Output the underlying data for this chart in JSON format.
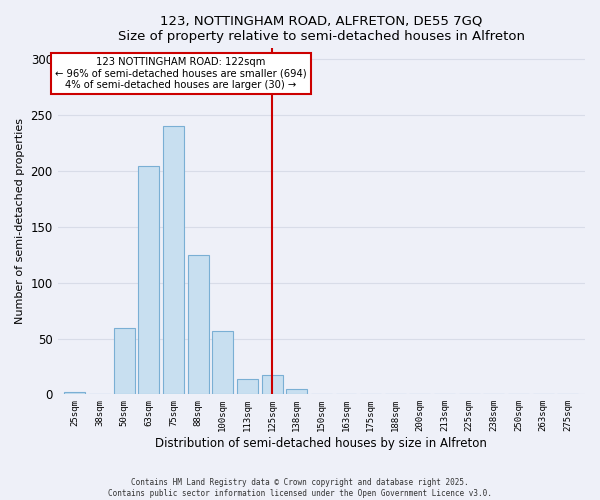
{
  "title": "123, NOTTINGHAM ROAD, ALFRETON, DE55 7GQ",
  "subtitle": "Size of property relative to semi-detached houses in Alfreton",
  "xlabel": "Distribution of semi-detached houses by size in Alfreton",
  "ylabel": "Number of semi-detached properties",
  "bar_labels": [
    "25sqm",
    "38sqm",
    "50sqm",
    "63sqm",
    "75sqm",
    "88sqm",
    "100sqm",
    "113sqm",
    "125sqm",
    "138sqm",
    "150sqm",
    "163sqm",
    "175sqm",
    "188sqm",
    "200sqm",
    "213sqm",
    "225sqm",
    "238sqm",
    "250sqm",
    "263sqm",
    "275sqm"
  ],
  "bar_values": [
    2,
    0,
    59,
    205,
    240,
    125,
    57,
    14,
    17,
    5,
    0,
    0,
    0,
    0,
    0,
    0,
    0,
    0,
    0,
    0,
    0
  ],
  "bar_color": "#c8dff0",
  "bar_edge_color": "#7aafd4",
  "vline_x_index": 8,
  "vline_color": "#cc0000",
  "annotation_title": "123 NOTTINGHAM ROAD: 122sqm",
  "annotation_line1": "← 96% of semi-detached houses are smaller (694)",
  "annotation_line2": "4% of semi-detached houses are larger (30) →",
  "annotation_box_color": "#ffffff",
  "annotation_box_edge": "#cc0000",
  "ylim": [
    0,
    310
  ],
  "yticks": [
    0,
    50,
    100,
    150,
    200,
    250,
    300
  ],
  "footnote1": "Contains HM Land Registry data © Crown copyright and database right 2025.",
  "footnote2": "Contains public sector information licensed under the Open Government Licence v3.0.",
  "bg_color": "#eef0f8",
  "grid_color": "#d8dce8"
}
